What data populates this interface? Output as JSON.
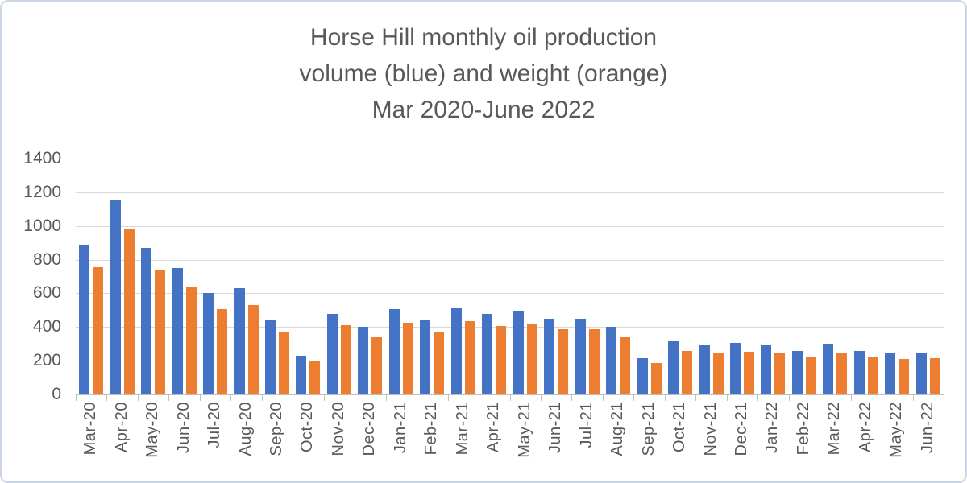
{
  "title": {
    "lines": [
      "Horse Hill monthly oil production",
      "volume (blue) and weight (orange)",
      "Mar 2020-June 2022"
    ]
  },
  "colors": {
    "volume_bar": "#4472C4",
    "weight_bar": "#ED7D31",
    "gridline": "#D9D9D9",
    "axis_line": "#BFBFBF",
    "text": "#595959",
    "chart_border": "#CCD5E2",
    "background": "#FFFFFF"
  },
  "chart_data": {
    "type": "bar",
    "title": "Horse Hill monthly oil production volume (blue) and weight (orange) Mar 2020-June 2022",
    "categories": [
      "Mar-20",
      "Apr-20",
      "May-20",
      "Jun-20",
      "Jul-20",
      "Aug-20",
      "Sep-20",
      "Oct-20",
      "Nov-20",
      "Dec-20",
      "Jan-21",
      "Feb-21",
      "Mar-21",
      "Apr-21",
      "May-21",
      "Jun-21",
      "Jul-21",
      "Aug-21",
      "Sep-21",
      "Oct-21",
      "Nov-21",
      "Dec-21",
      "Jan-22",
      "Feb-22",
      "Mar-22",
      "Apr-22",
      "May-22",
      "Jun-22"
    ],
    "series": [
      {
        "name": "volume (blue)",
        "color": "#4472C4",
        "values": [
          890,
          1155,
          870,
          750,
          600,
          630,
          440,
          230,
          480,
          400,
          505,
          440,
          515,
          480,
          495,
          450,
          450,
          400,
          215,
          315,
          290,
          305,
          295,
          260,
          300,
          260,
          245,
          250
        ]
      },
      {
        "name": "weight (orange)",
        "color": "#ED7D31",
        "values": [
          755,
          980,
          735,
          640,
          505,
          530,
          375,
          195,
          410,
          340,
          425,
          370,
          435,
          405,
          415,
          385,
          385,
          340,
          185,
          260,
          245,
          255,
          250,
          225,
          250,
          220,
          210,
          215
        ]
      }
    ],
    "xlabel": "",
    "ylabel": "",
    "ylim": [
      0,
      1400
    ],
    "yticks": [
      0,
      200,
      400,
      600,
      800,
      1000,
      1200,
      1400
    ],
    "grid": true,
    "legend_position": "none",
    "x_tick_label_rotation": 90
  }
}
